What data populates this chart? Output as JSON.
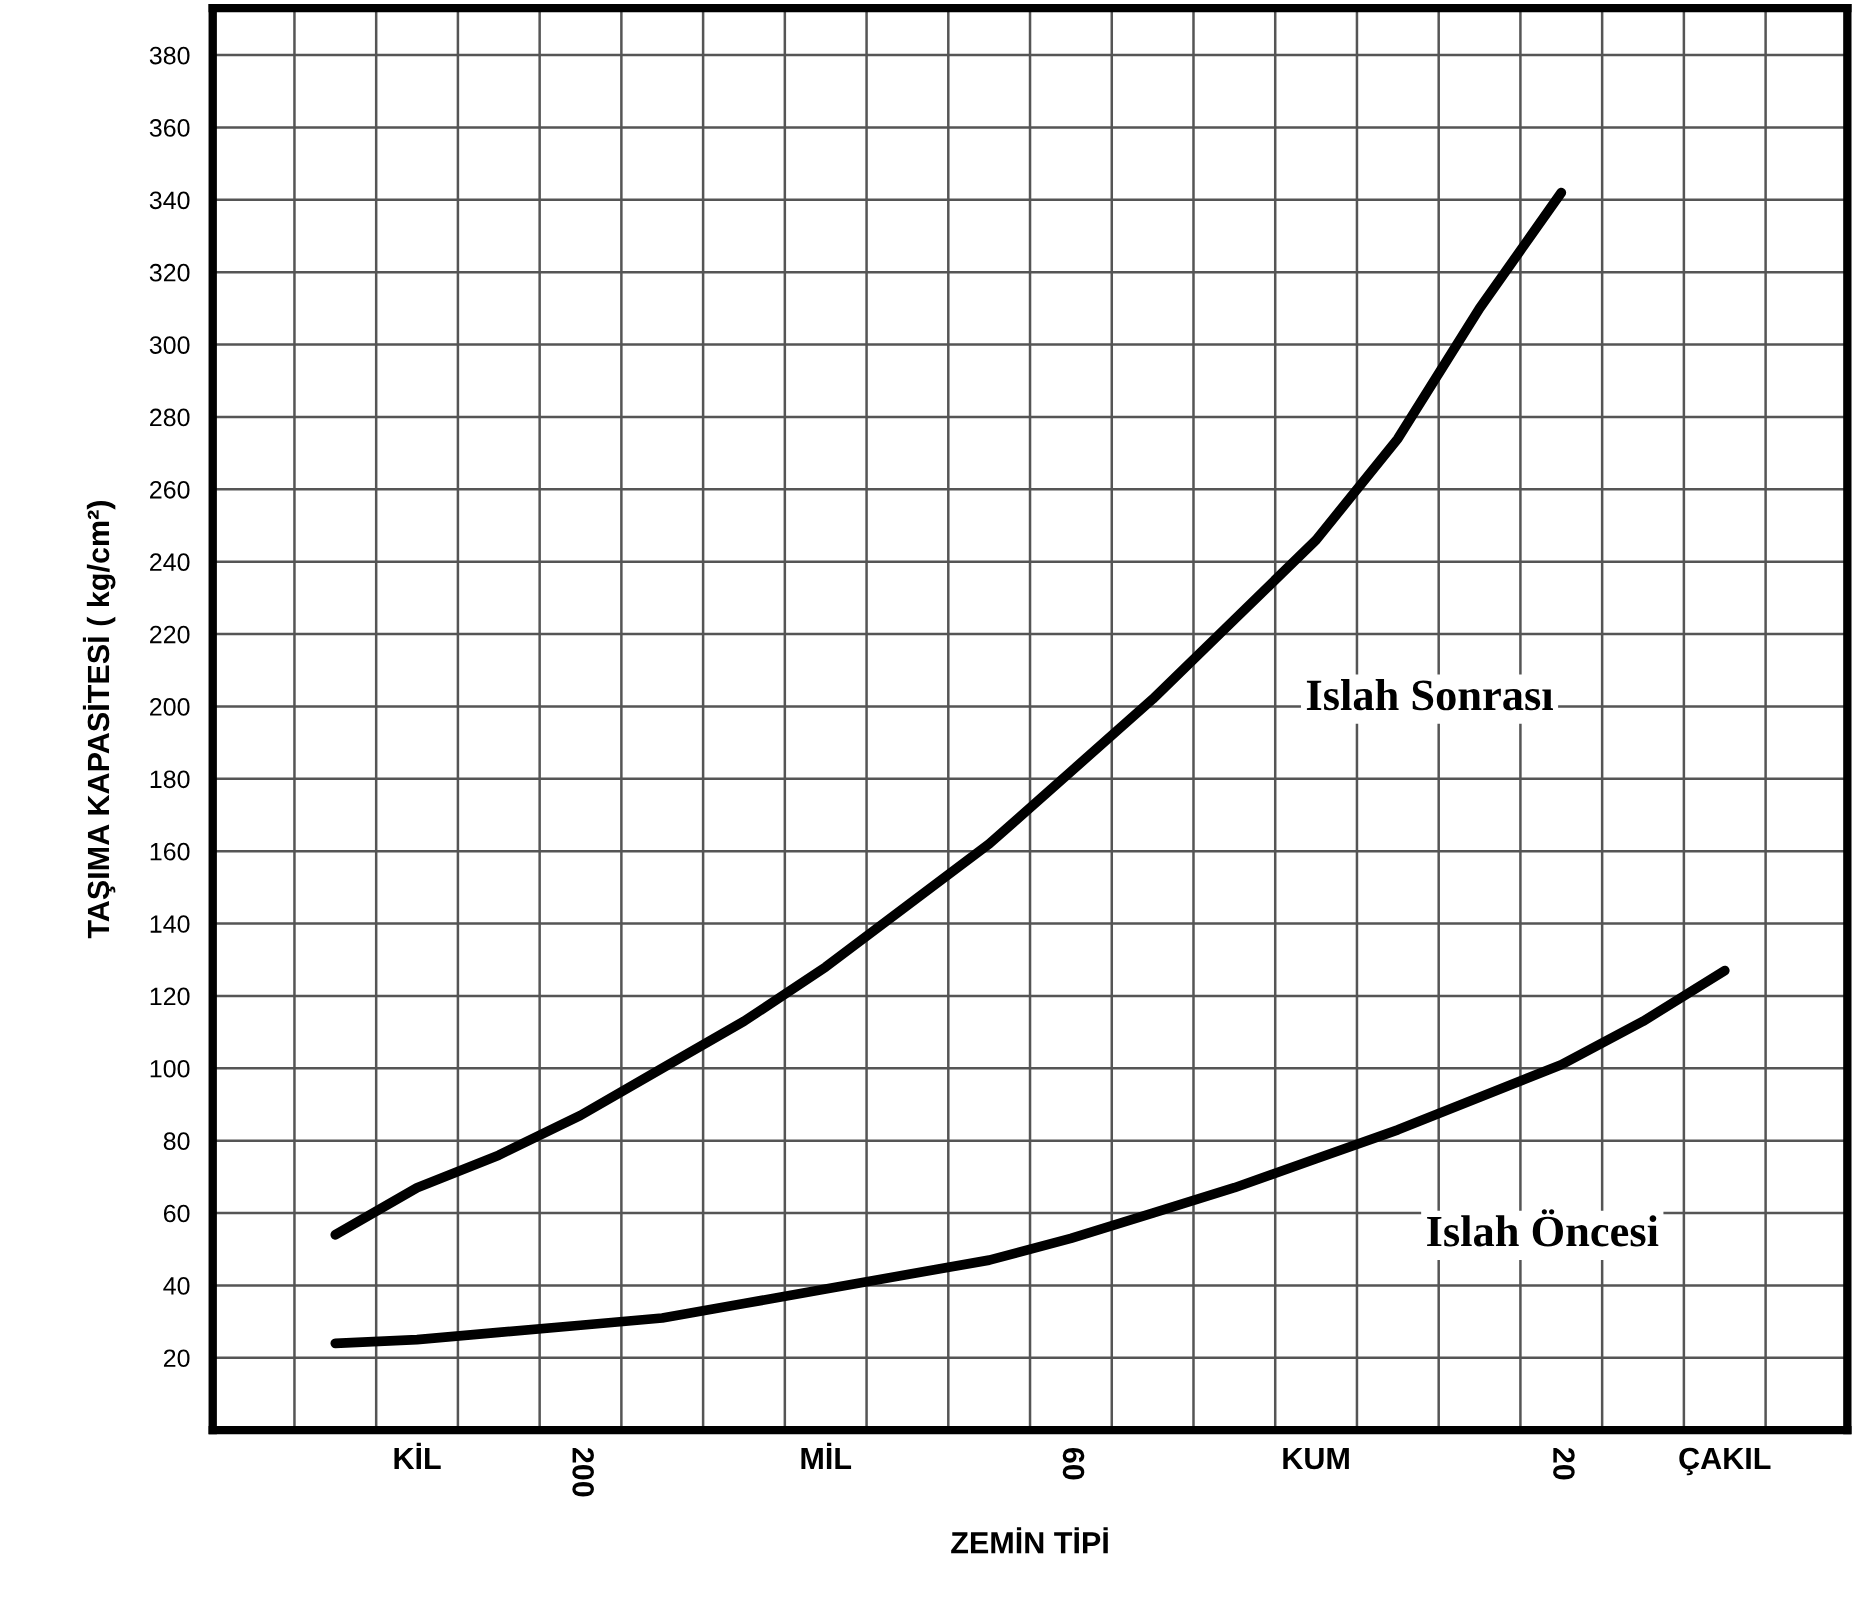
{
  "chart_data": {
    "type": "line",
    "xlabel": "ZEMİN TİPİ",
    "ylabel": "TAŞIMA KAPASİTESİ ( kg/cm²)",
    "categories": [
      null,
      null,
      "KİL",
      null,
      "200",
      null,
      null,
      "MİL",
      null,
      null,
      "60",
      null,
      null,
      "KUM",
      null,
      null,
      "20",
      null,
      "ÇAKIL",
      null
    ],
    "ylim": [
      0,
      393
    ],
    "yticks": [
      20,
      40,
      60,
      80,
      100,
      120,
      140,
      160,
      180,
      200,
      220,
      240,
      260,
      280,
      300,
      320,
      340,
      360,
      380
    ],
    "grid": true,
    "legend": false,
    "marker": "none",
    "line_style": "solid",
    "series": [
      {
        "name": "Islah Sonrası",
        "color": "#000000",
        "values": [
          null,
          54,
          67,
          76,
          87,
          100,
          113,
          128,
          145,
          162,
          182,
          202,
          224,
          246,
          274,
          310,
          342,
          null,
          null,
          null
        ]
      },
      {
        "name": "Islah Öncesi",
        "color": "#000000",
        "values": [
          null,
          24,
          25,
          27,
          29,
          31,
          35,
          39,
          43,
          47,
          53,
          60,
          67,
          75,
          83,
          92,
          101,
          113,
          127,
          null
        ]
      }
    ]
  }
}
